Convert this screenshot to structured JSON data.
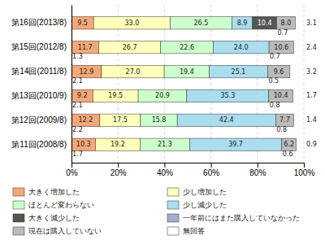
{
  "chart_data": {
    "type": "bar",
    "orientation": "horizontal",
    "stacked": true,
    "data_labels": true,
    "grid": true,
    "categories": [
      "第16回(2013/8)",
      "第15回(2012/8)",
      "第14回(2011/8)",
      "第13回(2010/9)",
      "第12回(2009/8)",
      "第11回(2008/8)"
    ],
    "xlim": [
      0,
      100
    ],
    "xticks": [
      {
        "value": 0,
        "label": "0%"
      },
      {
        "value": 20,
        "label": "20%"
      },
      {
        "value": 40,
        "label": "40%"
      },
      {
        "value": 60,
        "label": "60%"
      },
      {
        "value": 80,
        "label": "80%"
      },
      {
        "value": 100,
        "label": "100%"
      }
    ],
    "series": [
      {
        "type": "text",
        "values": [
          null,
          1.3,
          2.1,
          2.1,
          2.2,
          1.7
        ]
      },
      {
        "name": "大きく増加した",
        "color": "#F4A878",
        "values": [
          9.5,
          11.7,
          12.9,
          9.2,
          12.2,
          10.3
        ]
      },
      {
        "name": "少し増加した",
        "color": "#FFFFBB",
        "values": [
          33.0,
          26.7,
          27.0,
          19.5,
          17.5,
          19.2
        ],
        "value_labels": [
          "33.0",
          "26.7",
          "27.0",
          "19.5",
          "17.5",
          "19.2"
        ]
      },
      {
        "name": "ほとんど変わらない",
        "color": "#CCFFCC",
        "values": [
          26.5,
          22.6,
          19.4,
          20.9,
          15.8,
          21.3
        ]
      },
      {
        "name": "少し減少した",
        "color": "#AADDEE",
        "values": [
          8.9,
          24.0,
          25.1,
          35.3,
          42.4,
          39.7
        ],
        "value_labels": [
          "8.9",
          "24.0",
          "25.1",
          "35.3",
          "42.4",
          "39.7"
        ]
      },
      {
        "name": "大きく減少した",
        "color": "#555555",
        "values": [
          10.4,
          0.0,
          0.0,
          0.0,
          0.0,
          0.0
        ]
      },
      {
        "name": "一年前にはまた購入していなかった",
        "color": "#AAAACC",
        "type": "text",
        "values": [
          0.7,
          0.7,
          0.5,
          0.8,
          0.8,
          0.6
        ]
      },
      {
        "name": "現在は購入していない",
        "color": "#BBBBBB",
        "values": [
          8.0,
          10.6,
          9.6,
          10.4,
          7.7,
          6.2
        ],
        "value_labels": [
          "8.0",
          "10.6",
          "9.6",
          "10.4",
          "7.7",
          "6.2"
        ]
      },
      {
        "name": "無回答",
        "color": "#FFFFFF",
        "type": "text",
        "values": [
          3.1,
          2.4,
          3.2,
          1.7,
          1.4,
          0.9
        ]
      }
    ]
  }
}
